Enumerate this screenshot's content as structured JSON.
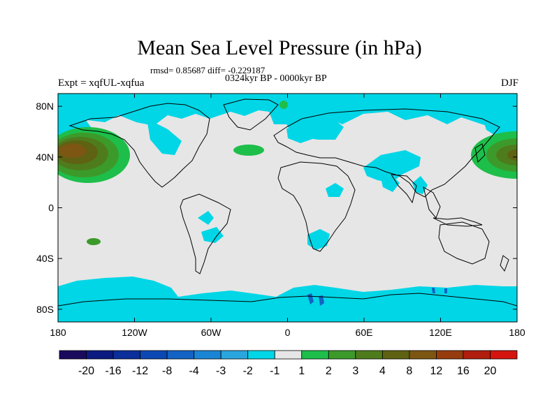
{
  "header": {
    "title": "Mean Sea Level Pressure (in hPa)",
    "stats": "rmsd= 0.85687 diff= -0.229187",
    "period": "0324kyr BP - 0000kyr BP",
    "expt": "Expt = xqfUL-xqfua",
    "season": "DJF"
  },
  "axes": {
    "lat_labels": [
      {
        "text": "80N",
        "lat": 80
      },
      {
        "text": "40N",
        "lat": 40
      },
      {
        "text": "0",
        "lat": 0
      },
      {
        "text": "40S",
        "lat": -40
      },
      {
        "text": "80S",
        "lat": -80
      }
    ],
    "lon_labels": [
      {
        "text": "180",
        "lon": -180
      },
      {
        "text": "120W",
        "lon": -120
      },
      {
        "text": "60W",
        "lon": -60
      },
      {
        "text": "0",
        "lon": 0
      },
      {
        "text": "60E",
        "lon": 60
      },
      {
        "text": "120E",
        "lon": 120
      },
      {
        "text": "180",
        "lon": 180
      }
    ]
  },
  "colorbar": {
    "colors": [
      "#1a0a5e",
      "#0a1a80",
      "#0a2e9a",
      "#0c48b4",
      "#1263c4",
      "#1a85d4",
      "#2aa6de",
      "#00d6e6",
      "#e6e6e6",
      "#1ebe4a",
      "#3c9a2a",
      "#4e7c1c",
      "#5e6212",
      "#7c5612",
      "#963c0e",
      "#b01e0e",
      "#d4140e"
    ],
    "labels": [
      "-20",
      "-16",
      "-12",
      "-8",
      "-4",
      "-3",
      "-2",
      "-1",
      "1",
      "2",
      "3",
      "4",
      "8",
      "12",
      "16",
      "20"
    ]
  },
  "chart_data": {
    "type": "contour-map",
    "title": "Mean Sea Level Pressure (in hPa)",
    "units": "hPa",
    "levels": [
      -20,
      -16,
      -12,
      -8,
      -4,
      -3,
      -2,
      -1,
      1,
      2,
      3,
      4,
      8,
      12,
      16,
      20
    ],
    "lon_range": [
      -180,
      180
    ],
    "lat_range": [
      -90,
      90
    ],
    "features": [
      {
        "name": "north-pacific-west-high",
        "lon": -165,
        "lat": 42,
        "peak_hpa": 8
      },
      {
        "name": "north-pacific-east-high",
        "lon": 170,
        "lat": 40,
        "peak_hpa": 4
      },
      {
        "name": "north-atlantic-high",
        "lon": -35,
        "lat": 40,
        "peak_hpa": 2
      },
      {
        "name": "north-asia-low",
        "lon": 50,
        "lat": 40,
        "peak_hpa": -2
      },
      {
        "name": "southern-ocean-low-band",
        "lat": -75,
        "peak_hpa": -3
      }
    ]
  }
}
